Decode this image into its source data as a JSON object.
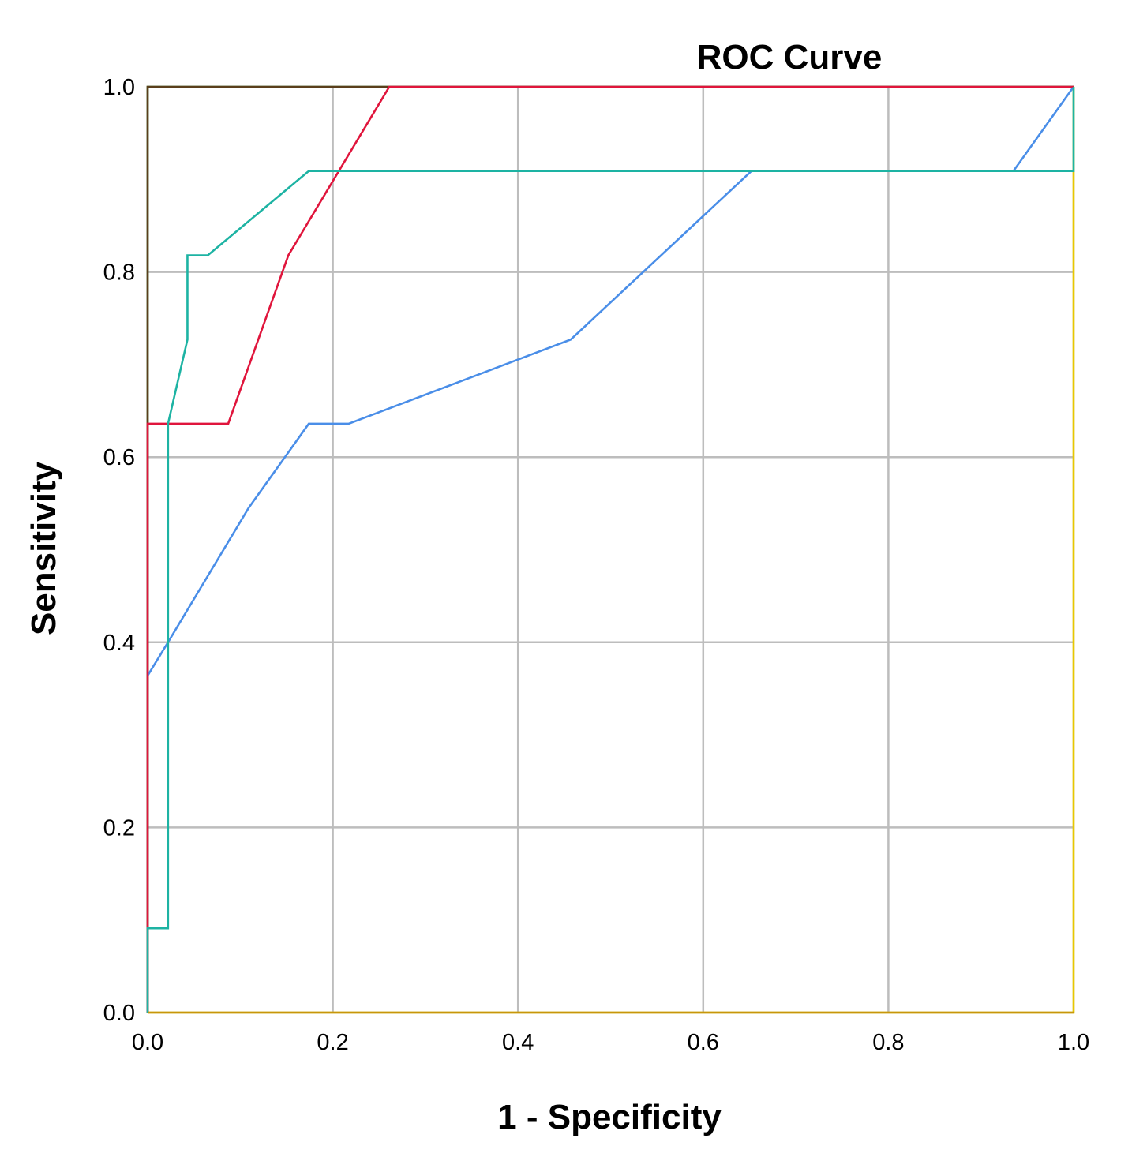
{
  "chart_data": {
    "type": "line",
    "title": "ROC Curve",
    "xlabel": "1 - Specificity",
    "ylabel": "Sensitivity",
    "xlim": [
      0,
      1
    ],
    "ylim": [
      0,
      1
    ],
    "grid": true,
    "xticks": [
      "0.0",
      "0.2",
      "0.4",
      "0.6",
      "0.8",
      "1.0"
    ],
    "yticks": [
      "0.0",
      "0.2",
      "0.4",
      "0.6",
      "0.8",
      "1.0"
    ],
    "series": [
      {
        "color": "#e8c800",
        "points": [
          [
            0.0,
            0.0
          ],
          [
            1.0,
            0.0
          ],
          [
            1.0,
            1.0
          ]
        ]
      },
      {
        "color": "#2e8b2e",
        "points": [
          [
            0.0,
            0.0
          ],
          [
            0.0,
            1.0
          ],
          [
            1.0,
            1.0
          ]
        ]
      },
      {
        "color": "#5a3e1b",
        "points": [
          [
            0.0,
            0.0
          ],
          [
            0.0,
            1.0
          ],
          [
            1.0,
            1.0
          ]
        ]
      },
      {
        "color": "#4a8ee8",
        "points": [
          [
            0.0,
            0.364
          ],
          [
            0.022,
            0.4
          ],
          [
            0.109,
            0.545
          ],
          [
            0.174,
            0.636
          ],
          [
            0.217,
            0.636
          ],
          [
            0.457,
            0.727
          ],
          [
            0.652,
            0.909
          ],
          [
            0.935,
            0.909
          ],
          [
            1.0,
            1.0
          ]
        ]
      },
      {
        "color": "#e0153c",
        "points": [
          [
            0.0,
            0.0
          ],
          [
            0.0,
            0.636
          ],
          [
            0.087,
            0.636
          ],
          [
            0.152,
            0.818
          ],
          [
            0.261,
            1.0
          ],
          [
            1.0,
            1.0
          ]
        ]
      },
      {
        "color": "#1db3a3",
        "points": [
          [
            0.0,
            0.0
          ],
          [
            0.0,
            0.091
          ],
          [
            0.022,
            0.091
          ],
          [
            0.022,
            0.636
          ],
          [
            0.043,
            0.727
          ],
          [
            0.043,
            0.818
          ],
          [
            0.065,
            0.818
          ],
          [
            0.174,
            0.909
          ],
          [
            1.0,
            0.909
          ],
          [
            1.0,
            1.0
          ]
        ]
      },
      {
        "color": "#c8960a",
        "points": [
          [
            0.0,
            0.0
          ],
          [
            1.0,
            0.0
          ]
        ]
      }
    ]
  }
}
